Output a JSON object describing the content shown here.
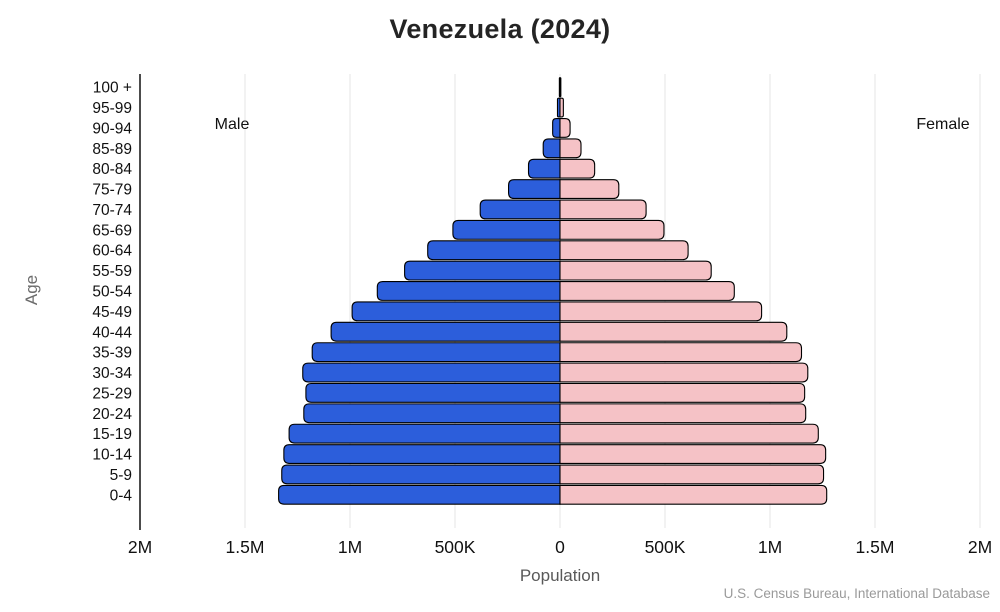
{
  "title": "Venezuela (2024)",
  "male_label": "Male",
  "female_label": "Female",
  "y_axis_title": "Age",
  "x_axis_title": "Population",
  "source": "U.S. Census Bureau, International Database",
  "chart_data": {
    "type": "bar",
    "subtype": "population-pyramid",
    "title": "Venezuela (2024)",
    "xlabel": "Population",
    "ylabel": "Age",
    "age_groups": [
      "0-4",
      "5-9",
      "10-14",
      "15-19",
      "20-24",
      "25-29",
      "30-34",
      "35-39",
      "40-44",
      "45-49",
      "50-54",
      "55-59",
      "60-64",
      "65-69",
      "70-74",
      "75-79",
      "80-84",
      "85-89",
      "90-94",
      "95-99",
      "100 +"
    ],
    "age_axis_order_top_to_bottom": [
      "100 +",
      "95-99",
      "90-94",
      "85-89",
      "80-84",
      "75-79",
      "70-74",
      "65-69",
      "60-64",
      "55-59",
      "50-54",
      "45-49",
      "40-44",
      "35-39",
      "30-34",
      "25-29",
      "20-24",
      "15-19",
      "10-14",
      "5-9",
      "0-4"
    ],
    "series": [
      {
        "name": "Male",
        "side": "left",
        "color": "#2c5edb",
        "values_millions": [
          1.34,
          1.325,
          1.315,
          1.29,
          1.22,
          1.21,
          1.225,
          1.18,
          1.09,
          0.99,
          0.87,
          0.74,
          0.63,
          0.51,
          0.38,
          0.245,
          0.15,
          0.08,
          0.035,
          0.012,
          0.003
        ]
      },
      {
        "name": "Female",
        "side": "right",
        "color": "#f5c2c6",
        "values_millions": [
          1.27,
          1.255,
          1.265,
          1.23,
          1.17,
          1.165,
          1.18,
          1.15,
          1.08,
          0.96,
          0.83,
          0.72,
          0.61,
          0.495,
          0.41,
          0.28,
          0.165,
          0.1,
          0.048,
          0.016,
          0.004
        ]
      }
    ],
    "x_ticks": [
      "2M",
      "1.5M",
      "1M",
      "500K",
      "0",
      "500K",
      "1M",
      "1.5M",
      "2M"
    ],
    "x_tick_values_millions": [
      -2,
      -1.5,
      -1,
      -0.5,
      0,
      0.5,
      1,
      1.5,
      2
    ],
    "xlim_millions": [
      -2,
      2
    ],
    "grid": "vertical",
    "bar_outline_color": "#000000",
    "legend_position": "in-plot-labels"
  }
}
